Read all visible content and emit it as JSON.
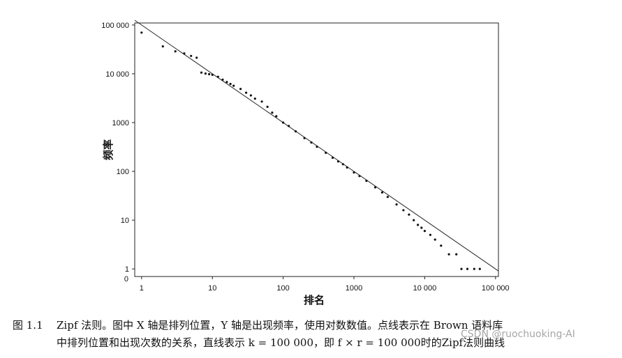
{
  "chart_data": {
    "type": "scatter",
    "title": "",
    "xlabel": "排名",
    "ylabel": "频率",
    "x_scale": "log",
    "y_scale": "log",
    "xlim": [
      0.8,
      110000
    ],
    "ylim": [
      0.7,
      110000
    ],
    "x_ticks": [
      1,
      10,
      100,
      1000,
      10000,
      100000
    ],
    "x_tick_labels": [
      "1",
      "10",
      "100",
      "1000",
      "10 000",
      "100 000"
    ],
    "y_ticks": [
      1,
      10,
      100,
      1000,
      10000,
      100000
    ],
    "y_tick_labels": [
      "1",
      "10",
      "100",
      "1000",
      "10 000",
      "100 000"
    ],
    "y_origin_label": "0",
    "grid": false,
    "legend": "none",
    "reference_line": {
      "k": 100000,
      "formula": "f = k / r"
    },
    "series": [
      {
        "points": [
          [
            1,
            69971
          ],
          [
            2,
            36411
          ],
          [
            3,
            28852
          ],
          [
            4,
            26149
          ],
          [
            5,
            23237
          ],
          [
            6,
            21341
          ],
          [
            7,
            10595
          ],
          [
            8,
            10099
          ],
          [
            9,
            9816
          ],
          [
            10,
            9543
          ],
          [
            12,
            8700
          ],
          [
            14,
            7600
          ],
          [
            16,
            6800
          ],
          [
            18,
            6200
          ],
          [
            20,
            5700
          ],
          [
            25,
            4900
          ],
          [
            30,
            4100
          ],
          [
            35,
            3600
          ],
          [
            40,
            3100
          ],
          [
            50,
            2700
          ],
          [
            60,
            2100
          ],
          [
            70,
            1600
          ],
          [
            80,
            1350
          ],
          [
            100,
            1000
          ],
          [
            120,
            850
          ],
          [
            150,
            660
          ],
          [
            200,
            480
          ],
          [
            250,
            390
          ],
          [
            300,
            320
          ],
          [
            400,
            240
          ],
          [
            500,
            190
          ],
          [
            600,
            160
          ],
          [
            700,
            140
          ],
          [
            800,
            120
          ],
          [
            1000,
            95
          ],
          [
            1200,
            80
          ],
          [
            1500,
            64
          ],
          [
            2000,
            47
          ],
          [
            2500,
            37
          ],
          [
            3000,
            30
          ],
          [
            4000,
            21
          ],
          [
            5000,
            16
          ],
          [
            6000,
            13
          ],
          [
            7000,
            10
          ],
          [
            8000,
            8
          ],
          [
            9000,
            7
          ],
          [
            10000,
            6
          ],
          [
            12000,
            5
          ],
          [
            14000,
            4
          ],
          [
            17000,
            3
          ],
          [
            22000,
            2
          ],
          [
            28000,
            2
          ],
          [
            33000,
            1
          ],
          [
            40000,
            1
          ],
          [
            50000,
            1
          ],
          [
            60000,
            1
          ]
        ]
      }
    ]
  },
  "caption": {
    "number": "图 1.1",
    "line1": "Zipf 法则。图中 X 轴是排列位置，Y 轴是出现频率，使用对数数值。点线表示在 Brown 语料库",
    "line2": "中排列位置和出现次数的关系，直线表示 k = 100 000，即 f × r = 100 000时的Zipf法则曲线"
  },
  "watermark": "CSDN @ruochuoking-AI"
}
